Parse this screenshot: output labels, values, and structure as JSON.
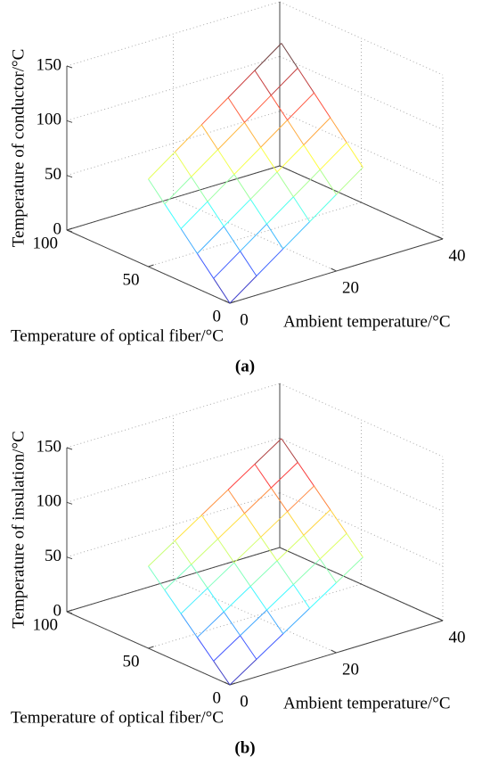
{
  "chart_data": [
    {
      "type": "surface",
      "caption": "(a)",
      "xlabel": "Ambient temperature/°C",
      "ylabel": "Temperature of optical fiber/°C",
      "zlabel": "Temperature of conductor/°C",
      "x": [
        0,
        5,
        10,
        15,
        20,
        25
      ],
      "y": [
        0,
        10,
        20,
        30,
        40,
        50
      ],
      "z": [
        [
          0,
          17.5,
          35,
          52.5,
          70,
          87.5
        ],
        [
          16,
          33.5,
          51,
          68.5,
          86,
          103.5
        ],
        [
          32,
          49.5,
          67,
          84.5,
          102,
          119.5
        ],
        [
          48,
          65.5,
          83,
          100.5,
          118,
          135.5
        ],
        [
          64,
          81.5,
          99,
          116.5,
          134,
          151.5
        ],
        [
          80,
          97.5,
          115,
          132.5,
          150,
          167.5
        ]
      ],
      "xlim": [
        0,
        40
      ],
      "ylim": [
        0,
        100
      ],
      "zlim": [
        0,
        150
      ],
      "xticks": [
        0,
        20,
        40
      ],
      "yticks": [
        0,
        50,
        100
      ],
      "zticks": [
        0,
        50,
        100,
        150
      ],
      "colormap": "jet",
      "grid": true
    },
    {
      "type": "surface",
      "caption": "(b)",
      "xlabel": "Ambient temperature/°C",
      "ylabel": "Temperature of optical fiber/°C",
      "zlabel": "Temperature of insulation/°C",
      "x": [
        0,
        5,
        10,
        15,
        20,
        25
      ],
      "y": [
        0,
        10,
        20,
        30,
        40,
        50
      ],
      "z": [
        [
          0,
          16,
          32,
          48,
          64,
          80
        ],
        [
          15,
          31,
          47,
          63,
          79,
          95
        ],
        [
          30,
          46,
          62,
          78,
          94,
          110
        ],
        [
          45,
          61,
          77,
          93,
          109,
          125
        ],
        [
          60,
          76,
          92,
          108,
          124,
          140
        ],
        [
          75,
          91,
          107,
          123,
          139,
          155
        ]
      ],
      "xlim": [
        0,
        40
      ],
      "ylim": [
        0,
        100
      ],
      "zlim": [
        0,
        150
      ],
      "xticks": [
        0,
        20,
        40
      ],
      "yticks": [
        0,
        50,
        100
      ],
      "zticks": [
        0,
        50,
        100,
        150
      ],
      "colormap": "jet",
      "grid": true
    }
  ]
}
